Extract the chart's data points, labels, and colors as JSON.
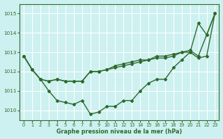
{
  "title": "Graphe pression niveau de la mer (hPa)",
  "bg_color": "#cdf0f0",
  "grid_color": "#ffffff",
  "line_color": "#2d6a2d",
  "marker": "D",
  "markersize": 2.0,
  "linewidth": 1.0,
  "xlim": [
    -0.5,
    23.5
  ],
  "ylim": [
    1009.5,
    1015.5
  ],
  "yticks": [
    1010,
    1011,
    1012,
    1013,
    1014,
    1015
  ],
  "xticks": [
    0,
    1,
    2,
    3,
    4,
    5,
    6,
    7,
    8,
    9,
    10,
    11,
    12,
    13,
    14,
    15,
    16,
    17,
    18,
    19,
    20,
    21,
    22,
    23
  ],
  "series": [
    [
      1012.8,
      1012.1,
      1011.6,
      1011.5,
      1011.6,
      1011.5,
      1011.5,
      1011.5,
      1012.0,
      1012.0,
      1012.1,
      1012.2,
      1012.3,
      1012.4,
      1012.5,
      1012.6,
      1012.7,
      1012.7,
      1012.8,
      1013.0,
      1013.0,
      1012.7,
      1012.8,
      1015.0
    ],
    [
      1012.8,
      1012.1,
      1011.6,
      1011.5,
      1011.6,
      1011.5,
      1011.5,
      1011.5,
      1012.0,
      1012.0,
      1012.1,
      1012.3,
      1012.4,
      1012.5,
      1012.6,
      1012.6,
      1012.8,
      1012.8,
      1012.9,
      1013.0,
      1013.1,
      1012.8,
      1013.9,
      1015.0
    ],
    [
      1012.8,
      1012.1,
      1011.6,
      1011.0,
      1010.5,
      1010.4,
      1010.3,
      1010.5,
      1009.8,
      1009.9,
      1010.2,
      1010.2,
      1010.5,
      1010.5,
      1011.0,
      1011.4,
      1011.6,
      1011.6,
      1012.2,
      1012.6,
      1013.0,
      1014.5,
      1013.9,
      1015.0
    ]
  ]
}
